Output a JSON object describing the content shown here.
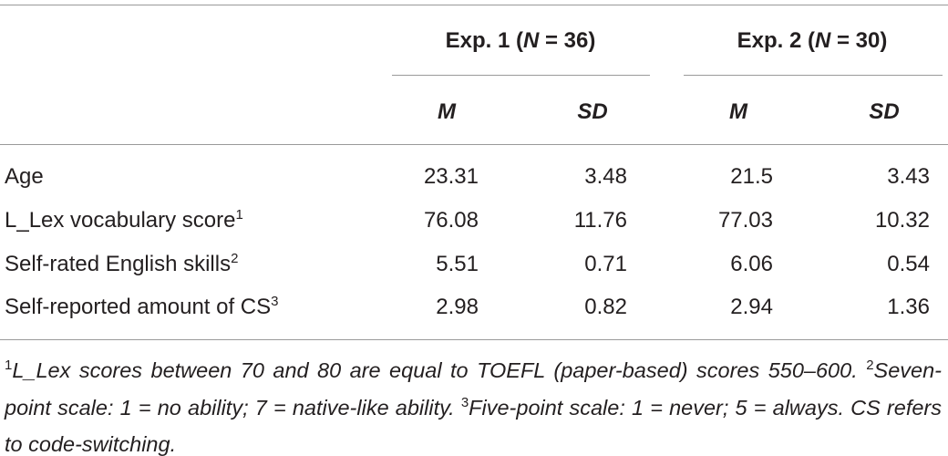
{
  "table": {
    "groups": [
      {
        "parts": [
          "Exp. 1 (",
          "N",
          " = 36)"
        ]
      },
      {
        "parts": [
          "Exp. 2 (",
          "N",
          " = 30)"
        ]
      }
    ],
    "columns": [
      "M",
      "SD",
      "M",
      "SD"
    ],
    "rows": [
      {
        "label": "Age",
        "note": null,
        "cells": [
          "23.31",
          "3.48",
          "21.5",
          "3.43"
        ]
      },
      {
        "label": "L_Lex vocabulary score",
        "note": "1",
        "cells": [
          "76.08",
          "11.76",
          "77.03",
          "10.32"
        ]
      },
      {
        "label": "Self-rated English skills",
        "note": "2",
        "cells": [
          "5.51",
          "0.71",
          "6.06",
          "0.54"
        ]
      },
      {
        "label": "Self-reported amount of CS",
        "note": "3",
        "cells": [
          "2.98",
          "0.82",
          "2.94",
          "1.36"
        ]
      }
    ],
    "footnotes": [
      {
        "mark": "1",
        "text": "L_Lex scores between 70 and 80 are equal to TOEFL (paper-based) scores 550–600."
      },
      {
        "mark": "2",
        "text": "Seven-point scale: 1 = no ability; 7 = native-like ability."
      },
      {
        "mark": "3",
        "text": "Five-point scale: 1 = never; 5 = always. CS refers to code-switching."
      }
    ]
  }
}
